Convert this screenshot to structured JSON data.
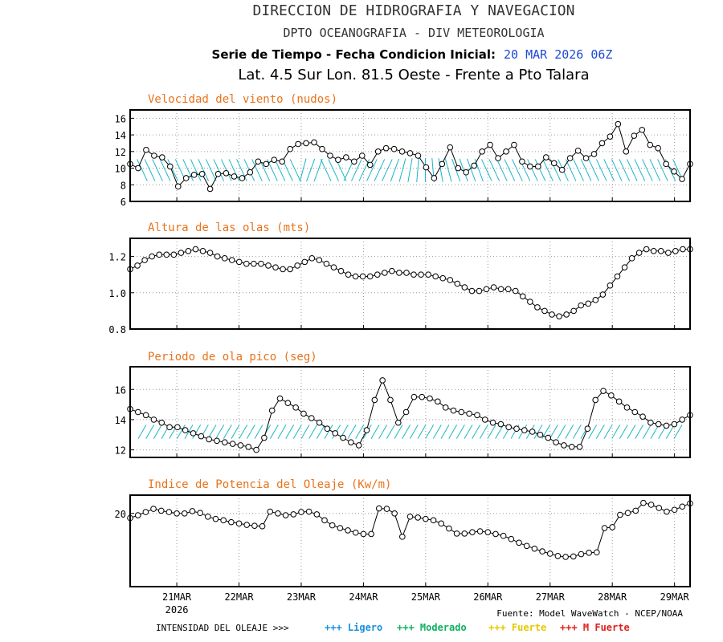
{
  "header": {
    "title": "DIRECCION DE HIDROGRAFIA Y NAVEGACION",
    "subtitle": "DPTO OCEANOGRAFIA - DIV METEOROLOGIA",
    "series_label": "Serie de Tiempo - Fecha Condicion Inicial:",
    "init_date": "20 MAR 2026 06Z",
    "location": "Lat. 4.5 Sur  Lon. 81.5 Oeste - Frente a Pto Talara"
  },
  "colors": {
    "title": "#000000",
    "panel_title": "#e8731c",
    "date": "#1f48d8",
    "arrow": "#18b6c8",
    "ligero": "#1a8fe0",
    "moderado": "#10b060",
    "fuerte": "#e8c800",
    "m_fuerte": "#e02020"
  },
  "x_axis": {
    "domain": [
      0,
      9
    ],
    "ticks": [
      {
        "x": 0.75,
        "label": "21MAR"
      },
      {
        "x": 1.75,
        "label": "22MAR"
      },
      {
        "x": 2.75,
        "label": "23MAR"
      },
      {
        "x": 3.75,
        "label": "24MAR"
      },
      {
        "x": 4.75,
        "label": "25MAR"
      },
      {
        "x": 5.75,
        "label": "26MAR"
      },
      {
        "x": 6.75,
        "label": "27MAR"
      },
      {
        "x": 7.75,
        "label": "28MAR"
      },
      {
        "x": 8.75,
        "label": "29MAR"
      }
    ],
    "year_label": "2026"
  },
  "chart_data": [
    {
      "type": "line",
      "title": "Velocidad del viento (nudos)",
      "ylim": [
        6,
        17
      ],
      "yticks": [
        6,
        8,
        10,
        12,
        14,
        16
      ],
      "grid": true,
      "values": [
        10.5,
        10.0,
        12.2,
        11.5,
        11.3,
        10.2,
        7.8,
        8.8,
        9.2,
        9.3,
        7.5,
        9.3,
        9.4,
        9.0,
        8.8,
        9.5,
        10.8,
        10.5,
        11.0,
        10.8,
        12.3,
        12.9,
        13.0,
        13.1,
        12.3,
        11.5,
        11.0,
        11.3,
        10.8,
        11.5,
        10.4,
        12.0,
        12.4,
        12.3,
        12.0,
        11.8,
        11.5,
        10.1,
        8.8,
        10.5,
        12.5,
        10.0,
        9.5,
        10.3,
        12.0,
        12.8,
        11.2,
        12.0,
        12.8,
        10.8,
        10.2,
        10.2,
        11.3,
        10.6,
        9.8,
        11.2,
        12.1,
        11.2,
        11.7,
        13.0,
        13.8,
        15.3,
        12.0,
        13.9,
        14.6,
        12.8,
        12.4,
        10.5,
        9.6,
        8.7,
        10.5
      ],
      "arrow_angles": [
        -25,
        -25,
        -25,
        -25,
        -25,
        -25,
        -25,
        -25,
        -25,
        -25,
        -25,
        -25,
        -25,
        -25,
        -25,
        -25,
        -25,
        -25,
        -25,
        -25,
        -25,
        15,
        20,
        20,
        -25,
        -25,
        -25,
        25,
        25,
        25,
        25,
        25,
        25,
        20,
        15,
        10,
        5,
        0,
        -5,
        -10,
        -15,
        -20,
        -20,
        -20,
        -20,
        -25,
        -25,
        -25,
        -25,
        -25,
        -25,
        -25,
        -25,
        -25,
        -25,
        -25,
        -25,
        -25,
        -25,
        -25,
        -25,
        -25,
        -25,
        -25,
        -25,
        -25,
        -25,
        -25,
        -25,
        -25,
        -25
      ]
    },
    {
      "type": "line",
      "title": "Altura de las olas (mts)",
      "ylim": [
        0.8,
        1.3
      ],
      "yticks": [
        0.8,
        1.0,
        1.2
      ],
      "ytick_labels": [
        "0.8",
        "1.0",
        "1.2"
      ],
      "grid": true,
      "values": [
        1.13,
        1.15,
        1.18,
        1.2,
        1.21,
        1.21,
        1.21,
        1.22,
        1.23,
        1.24,
        1.23,
        1.22,
        1.2,
        1.19,
        1.18,
        1.17,
        1.16,
        1.16,
        1.16,
        1.15,
        1.14,
        1.13,
        1.13,
        1.15,
        1.17,
        1.19,
        1.18,
        1.16,
        1.14,
        1.12,
        1.1,
        1.09,
        1.09,
        1.09,
        1.1,
        1.11,
        1.12,
        1.11,
        1.11,
        1.1,
        1.1,
        1.1,
        1.09,
        1.08,
        1.07,
        1.05,
        1.03,
        1.01,
        1.01,
        1.02,
        1.03,
        1.02,
        1.02,
        1.01,
        0.98,
        0.95,
        0.92,
        0.9,
        0.88,
        0.87,
        0.88,
        0.9,
        0.93,
        0.94,
        0.96,
        0.99,
        1.04,
        1.09,
        1.14,
        1.19,
        1.22,
        1.24,
        1.23,
        1.23,
        1.22,
        1.23,
        1.24,
        1.24
      ]
    },
    {
      "type": "line",
      "title": "Periodo de ola pico (seg)",
      "ylim": [
        11.5,
        17.5
      ],
      "yticks": [
        12,
        14,
        16
      ],
      "grid": true,
      "values": [
        14.7,
        14.5,
        14.3,
        14.0,
        13.8,
        13.5,
        13.5,
        13.3,
        13.1,
        12.9,
        12.7,
        12.6,
        12.5,
        12.4,
        12.3,
        12.2,
        12.0,
        12.8,
        14.6,
        15.4,
        15.1,
        14.8,
        14.4,
        14.1,
        13.8,
        13.4,
        13.1,
        12.8,
        12.5,
        12.3,
        13.3,
        15.3,
        16.6,
        15.3,
        13.8,
        14.5,
        15.5,
        15.5,
        15.4,
        15.2,
        14.8,
        14.6,
        14.5,
        14.4,
        14.3,
        14.0,
        13.8,
        13.7,
        13.5,
        13.4,
        13.3,
        13.2,
        13.0,
        12.8,
        12.5,
        12.3,
        12.2,
        12.2,
        13.4,
        15.3,
        15.9,
        15.6,
        15.2,
        14.8,
        14.5,
        14.2,
        13.8,
        13.7,
        13.6,
        13.7,
        14.0,
        14.3
      ],
      "arrow_angles": [
        30
      ]
    },
    {
      "type": "line",
      "title": "Indice de Potencia del Oleaje (Kw/m)",
      "ylim": [
        4,
        24
      ],
      "yticks": [
        20
      ],
      "grid": true,
      "values": [
        19.0,
        19.6,
        20.3,
        21.0,
        20.6,
        20.3,
        20.0,
        20.0,
        20.5,
        20.1,
        19.3,
        18.8,
        18.5,
        18.1,
        17.8,
        17.5,
        17.3,
        17.2,
        20.4,
        20.0,
        19.6,
        19.8,
        20.3,
        20.4,
        19.8,
        18.5,
        17.4,
        16.8,
        16.3,
        15.8,
        15.5,
        15.5,
        21.1,
        21.0,
        20.0,
        14.9,
        19.3,
        19.1,
        18.8,
        18.5,
        17.8,
        16.7,
        15.6,
        15.6,
        15.9,
        16.1,
        15.9,
        15.5,
        15.1,
        14.4,
        13.6,
        12.9,
        12.3,
        11.7,
        11.2,
        10.7,
        10.5,
        10.6,
        11.1,
        11.4,
        11.5,
        16.8,
        17.0,
        19.7,
        20.1,
        20.6,
        22.3,
        21.9,
        21.2,
        20.4,
        20.8,
        21.5,
        22.2
      ]
    }
  ],
  "footer": {
    "source": "Fuente: Model WaveWatch - NCEP/NOAA",
    "legend_title": "INTENSIDAD DEL OLEAJE >>>",
    "legend": [
      {
        "label": "+++ Ligero",
        "color_key": "ligero"
      },
      {
        "label": "+++ Moderado",
        "color_key": "moderado"
      },
      {
        "label": "+++ Fuerte",
        "color_key": "fuerte"
      },
      {
        "label": "+++ M Fuerte",
        "color_key": "m_fuerte"
      }
    ]
  }
}
